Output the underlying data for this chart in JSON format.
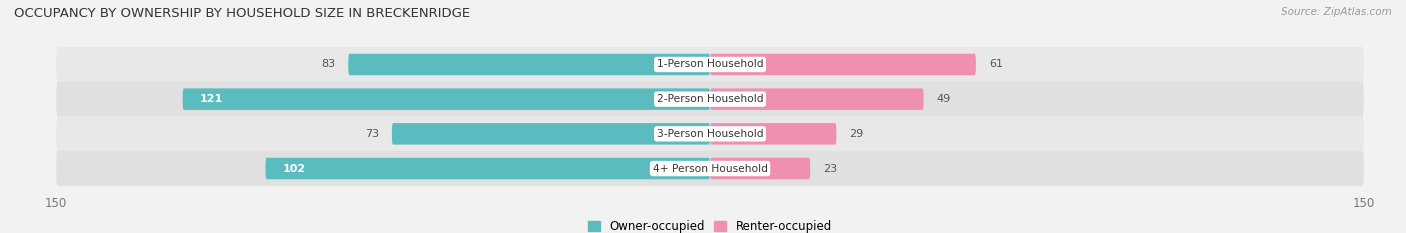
{
  "title": "OCCUPANCY BY OWNERSHIP BY HOUSEHOLD SIZE IN BRECKENRIDGE",
  "source": "Source: ZipAtlas.com",
  "categories": [
    "1-Person Household",
    "2-Person Household",
    "3-Person Household",
    "4+ Person Household"
  ],
  "owner_values": [
    83,
    121,
    73,
    102
  ],
  "renter_values": [
    61,
    49,
    29,
    23
  ],
  "owner_color": "#5bbcbf",
  "renter_color": "#f090b0",
  "axis_max": 150,
  "bg_color": "#f2f2f2",
  "capsule_color_even": "#e8e8e8",
  "capsule_color_odd": "#e0e0e0",
  "title_fontsize": 9.5,
  "bar_height": 0.62,
  "label_fontsize": 8.0,
  "tick_fontsize": 8.5,
  "legend_fontsize": 8.5
}
